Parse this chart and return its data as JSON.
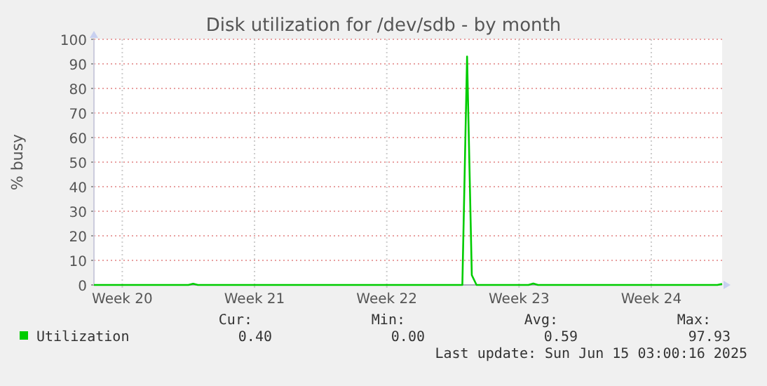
{
  "chart_data": {
    "type": "line",
    "title": "Disk utilization for /dev/sdb - by month",
    "ylabel": "% busy",
    "categories": [
      null,
      null,
      null,
      null,
      null,
      null,
      "Week 20",
      null,
      null,
      null,
      null,
      null,
      null,
      null,
      null,
      null,
      null,
      null,
      null,
      null,
      null,
      null,
      null,
      null,
      null,
      null,
      null,
      null,
      null,
      null,
      null,
      null,
      null,
      null,
      "Week 21",
      null,
      null,
      null,
      null,
      null,
      null,
      null,
      null,
      null,
      null,
      null,
      null,
      null,
      null,
      null,
      null,
      null,
      null,
      null,
      null,
      null,
      null,
      null,
      null,
      null,
      null,
      null,
      "Week 22",
      null,
      null,
      null,
      null,
      null,
      null,
      null,
      null,
      null,
      null,
      null,
      null,
      null,
      null,
      null,
      null,
      null,
      null,
      null,
      null,
      null,
      null,
      null,
      null,
      null,
      null,
      null,
      "Week 23",
      null,
      null,
      null,
      null,
      null,
      null,
      null,
      null,
      null,
      null,
      null,
      null,
      null,
      null,
      null,
      null,
      null,
      null,
      null,
      null,
      null,
      null,
      null,
      null,
      null,
      null,
      null,
      "Week 24",
      null,
      null,
      null,
      null,
      null,
      null,
      null,
      null,
      null,
      null,
      null,
      null,
      null,
      null,
      null
    ],
    "series": [
      {
        "name": "Utilization",
        "color": "#00cc00",
        "values": [
          0,
          0,
          0,
          0,
          0,
          0,
          0,
          0,
          0,
          0,
          0,
          0,
          0,
          0,
          0,
          0,
          0,
          0,
          0,
          0,
          0,
          0.5,
          0,
          0,
          0,
          0,
          0,
          0,
          0,
          0,
          0,
          0,
          0,
          0,
          0,
          0,
          0,
          0,
          0,
          0,
          0,
          0,
          0,
          0,
          0,
          0,
          0,
          0,
          0,
          0,
          0,
          0,
          0,
          0,
          0,
          0,
          0,
          0,
          0,
          0,
          0,
          0,
          0,
          0,
          0,
          0,
          0,
          0,
          0,
          0,
          0,
          0,
          0,
          0,
          0,
          0,
          0,
          0,
          0,
          93,
          4,
          0,
          0,
          0,
          0,
          0,
          0,
          0,
          0,
          0,
          0,
          0,
          0,
          0.6,
          0,
          0,
          0,
          0,
          0,
          0,
          0,
          0,
          0,
          0,
          0,
          0,
          0,
          0,
          0,
          0,
          0,
          0,
          0,
          0,
          0,
          0,
          0,
          0,
          0,
          0,
          0,
          0,
          0,
          0,
          0,
          0,
          0,
          0,
          0,
          0,
          0,
          0,
          0,
          0.4
        ]
      }
    ],
    "ylim": [
      0,
      100
    ],
    "yticks": [
      0,
      10,
      20,
      30,
      40,
      50,
      60,
      70,
      80,
      90,
      100
    ],
    "grid": true,
    "legend": "bottom",
    "marker": "none",
    "line_style": "solid",
    "annotations": [
      "Cur:",
      "Min:",
      "Avg:",
      "Max:",
      "0.40",
      "0.00",
      "0.59",
      "97.93",
      "Last update: Sun Jun 15 03:00:16 2025"
    ]
  }
}
